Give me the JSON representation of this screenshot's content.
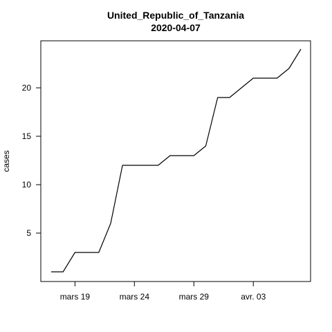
{
  "chart_data": {
    "type": "line",
    "title": "United_Republic_of_Tanzania",
    "subtitle": "2020-04-07",
    "xlabel": "",
    "ylabel": "cases",
    "x_tick_labels": [
      "mars 19",
      "mars 24",
      "mars 29",
      "avr. 03"
    ],
    "x_tick_dates": [
      "2020-03-19",
      "2020-03-24",
      "2020-03-29",
      "2020-04-03"
    ],
    "y_ticks": [
      5,
      10,
      15,
      20
    ],
    "xlim": [
      "2020-03-16",
      "2020-04-07"
    ],
    "ylim": [
      1,
      24
    ],
    "grid": false,
    "line_color": "#000000",
    "series": [
      {
        "x": [
          "2020-03-17",
          "2020-03-18",
          "2020-03-19",
          "2020-03-20",
          "2020-03-21",
          "2020-03-22",
          "2020-03-23",
          "2020-03-24",
          "2020-03-25",
          "2020-03-26",
          "2020-03-27",
          "2020-03-28",
          "2020-03-29",
          "2020-03-30",
          "2020-03-31",
          "2020-04-01",
          "2020-04-02",
          "2020-04-03",
          "2020-04-04",
          "2020-04-05",
          "2020-04-06",
          "2020-04-07"
        ],
        "values": [
          1,
          1,
          3,
          3,
          3,
          6,
          12,
          12,
          12,
          12,
          13,
          13,
          13,
          14,
          19,
          19,
          20,
          21,
          21,
          21,
          22,
          24
        ]
      }
    ]
  }
}
